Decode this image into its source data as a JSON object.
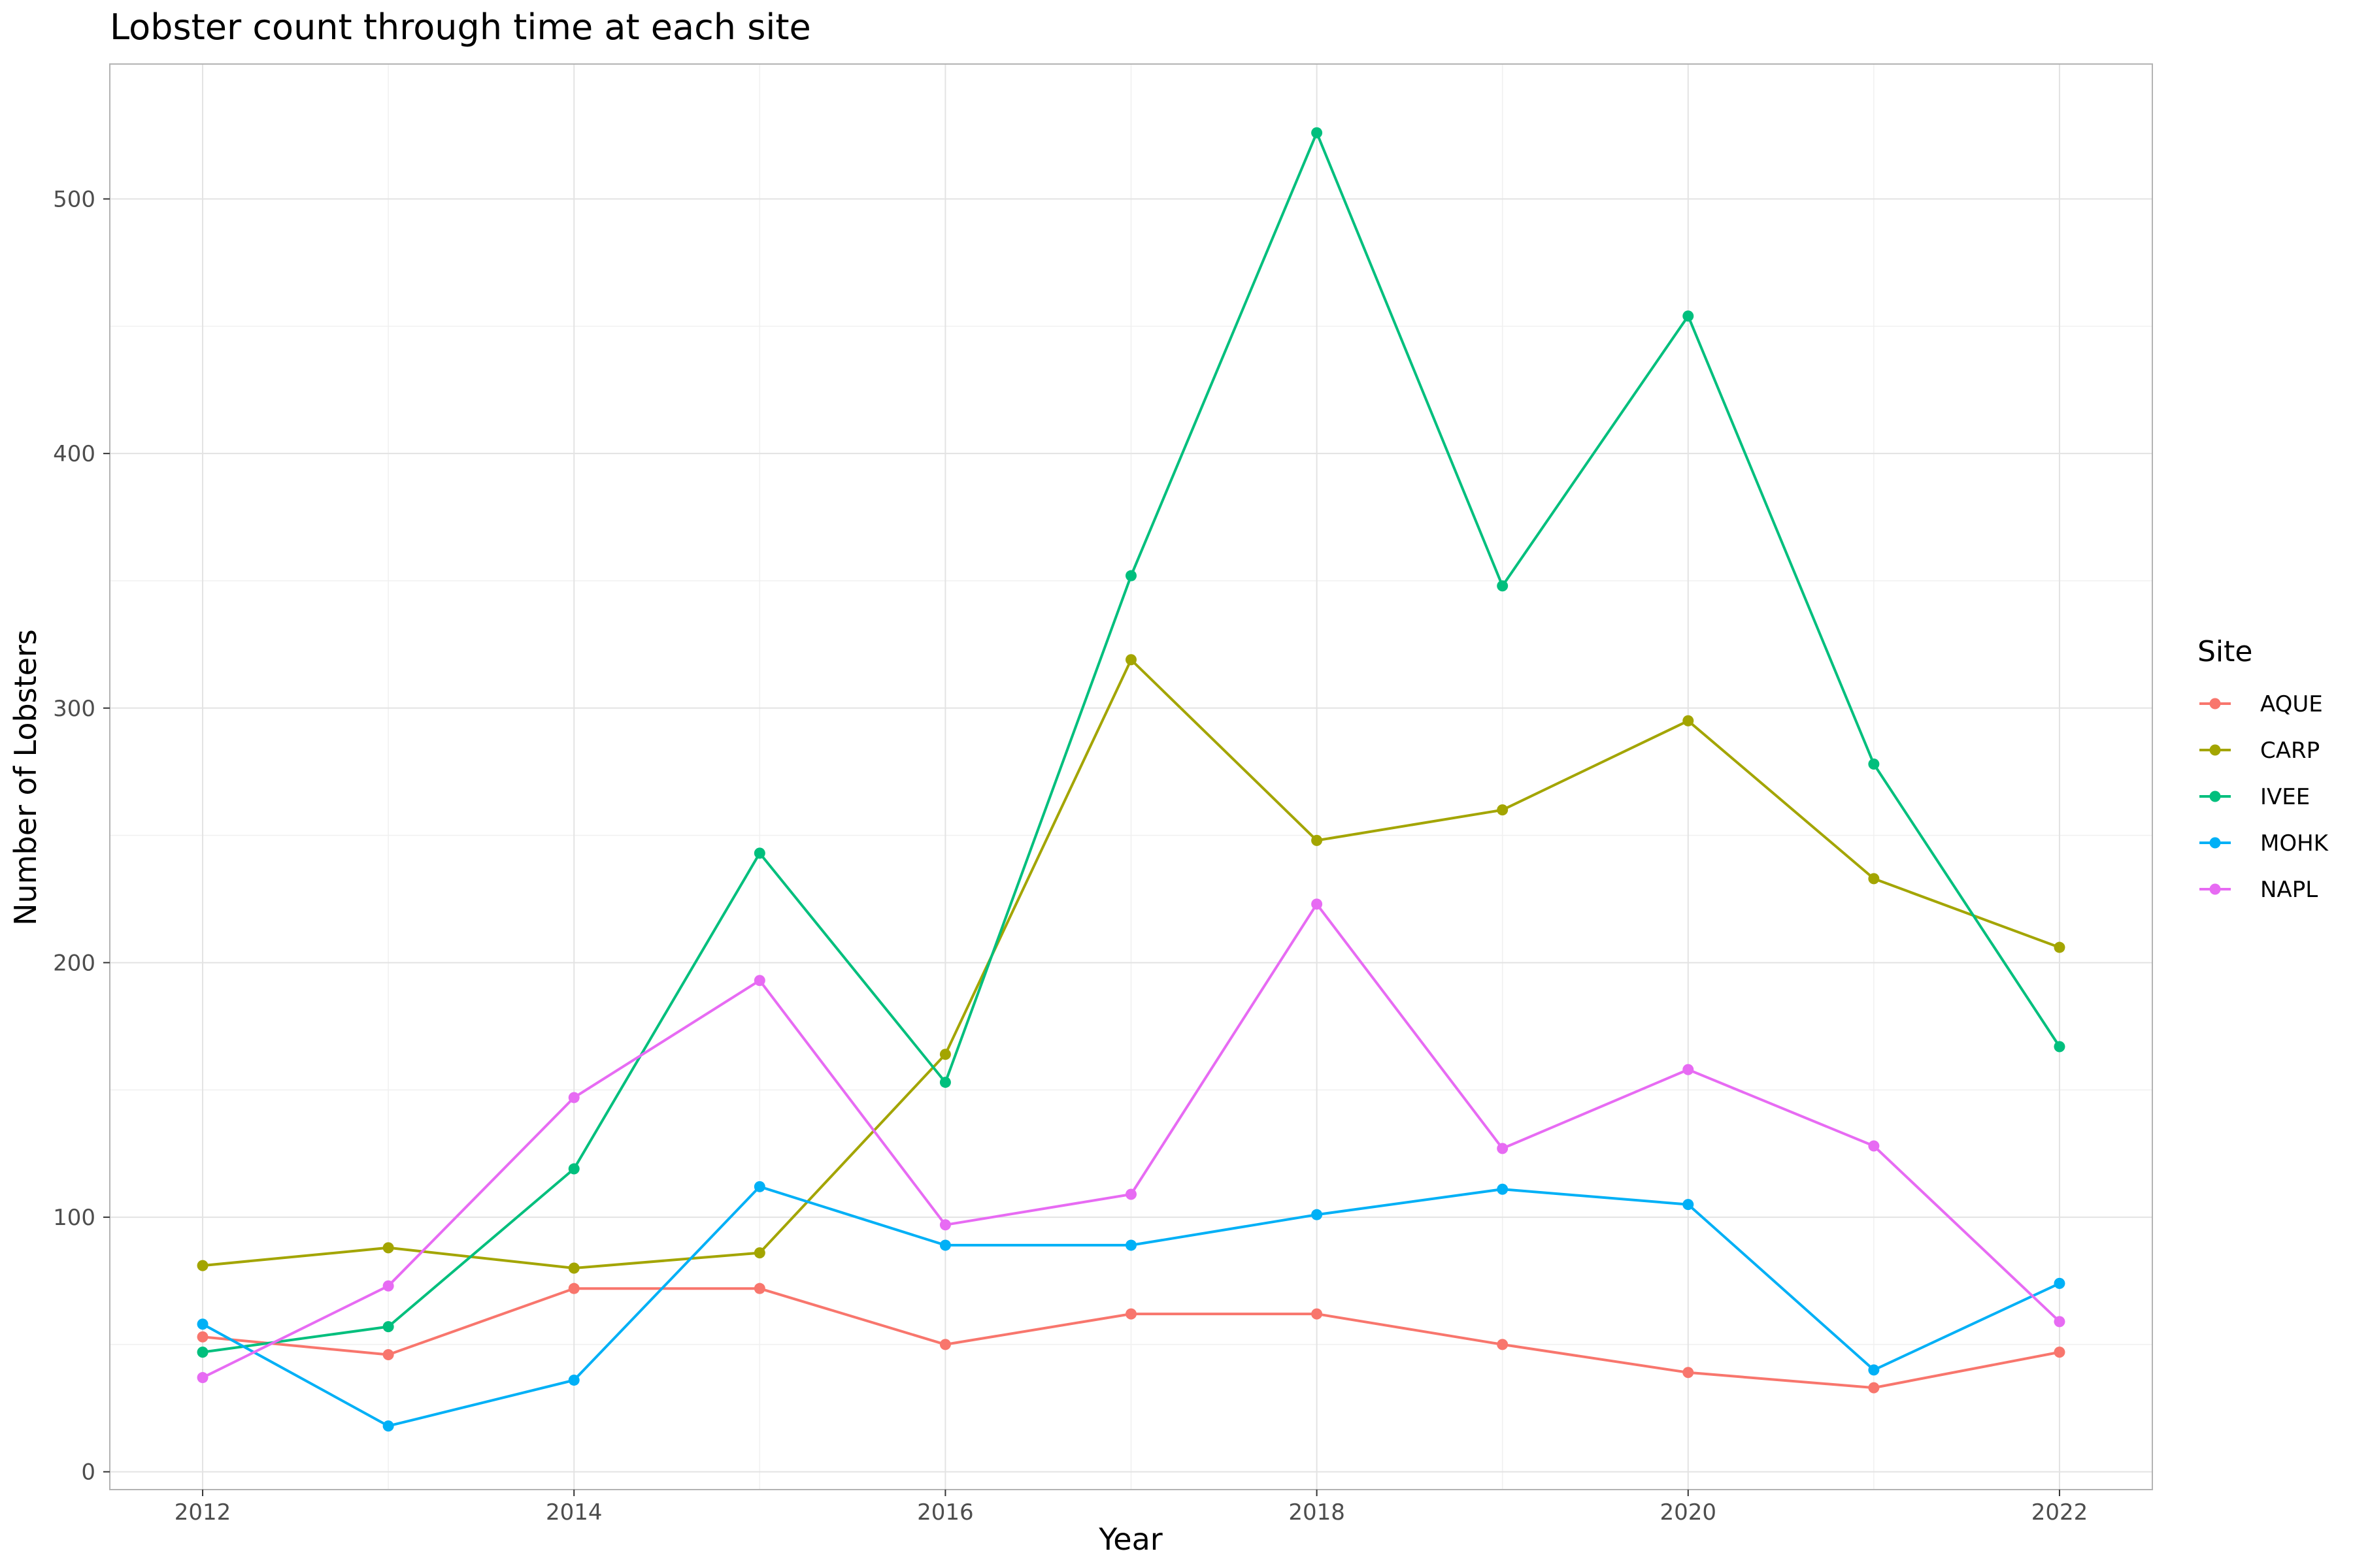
{
  "chart_data": {
    "type": "line",
    "title": "Lobster count through time at each site",
    "xlabel": "Year",
    "ylabel": "Number of Lobsters",
    "x": [
      2012,
      2013,
      2014,
      2015,
      2016,
      2017,
      2018,
      2019,
      2020,
      2021,
      2022
    ],
    "xlim": [
      2011.5,
      2022.5
    ],
    "ylim": [
      -7,
      553
    ],
    "x_ticks": [
      2012,
      2014,
      2016,
      2018,
      2020,
      2022
    ],
    "y_ticks": [
      0,
      100,
      200,
      300,
      400,
      500
    ],
    "grid": true,
    "legend": {
      "title": "Site",
      "position": "right"
    },
    "series": [
      {
        "name": "AQUE",
        "color": "#F8766D",
        "values": [
          53,
          46,
          72,
          72,
          50,
          62,
          62,
          50,
          39,
          33,
          47
        ]
      },
      {
        "name": "CARP",
        "color": "#A3A500",
        "values": [
          81,
          88,
          80,
          86,
          164,
          319,
          248,
          260,
          295,
          233,
          206
        ]
      },
      {
        "name": "IVEE",
        "color": "#00BF7D",
        "values": [
          47,
          57,
          119,
          243,
          153,
          352,
          526,
          348,
          454,
          278,
          167
        ]
      },
      {
        "name": "MOHK",
        "color": "#00B0F6",
        "values": [
          58,
          18,
          36,
          112,
          89,
          89,
          101,
          111,
          105,
          40,
          74
        ]
      },
      {
        "name": "NAPL",
        "color": "#E76BF3",
        "values": [
          37,
          73,
          147,
          193,
          97,
          109,
          223,
          127,
          158,
          128,
          59
        ]
      }
    ]
  }
}
